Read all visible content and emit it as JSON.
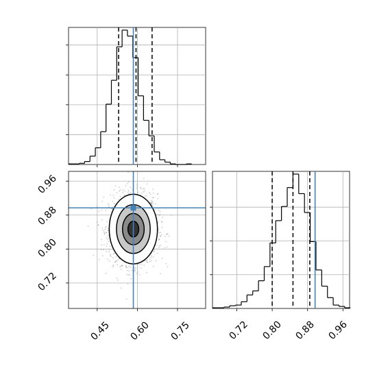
{
  "chart_data": {
    "type": "corner",
    "parameters": [
      "",
      ""
    ],
    "truth": {
      "x": 0.585,
      "y": 0.897,
      "color": "#4682b4"
    },
    "hist_x": {
      "type": "histogram",
      "bins": [
        0.343,
        0.363,
        0.383,
        0.403,
        0.423,
        0.443,
        0.463,
        0.483,
        0.503,
        0.523,
        0.543,
        0.563,
        0.583,
        0.603,
        0.623,
        0.643,
        0.663,
        0.683,
        0.703,
        0.723,
        0.743,
        0.763,
        0.783,
        0.803
      ],
      "counts": [
        1,
        1,
        2,
        5,
        14,
        28,
        55,
        101,
        141,
        197,
        225,
        215,
        179,
        115,
        74,
        48,
        21,
        8,
        4,
        1,
        0,
        0,
        1
      ],
      "quantiles": [
        0.53,
        0.595,
        0.655
      ],
      "xlim": [
        0.343,
        0.855
      ],
      "grid": true
    },
    "hist_y": {
      "type": "histogram",
      "bins": [
        0.665,
        0.678,
        0.691,
        0.704,
        0.717,
        0.73,
        0.743,
        0.756,
        0.769,
        0.782,
        0.795,
        0.808,
        0.821,
        0.834,
        0.847,
        0.86,
        0.873,
        0.886,
        0.899,
        0.912,
        0.925,
        0.938,
        0.951,
        0.964,
        0.977
      ],
      "counts": [
        1,
        1,
        2,
        4,
        5,
        10,
        20,
        26,
        41,
        62,
        97,
        130,
        151,
        179,
        199,
        170,
        142,
        99,
        57,
        33,
        16,
        5,
        3,
        1
      ],
      "quantiles": [
        0.8,
        0.847,
        0.885
      ],
      "xlim": [
        0.665,
        0.975
      ],
      "xticks": [
        "0.72",
        "0.80",
        "0.88",
        "0.96"
      ],
      "grid": true
    },
    "density": {
      "type": "scatter-contour",
      "xlim": [
        0.343,
        0.855
      ],
      "ylim": [
        0.66,
        0.983
      ],
      "xticks": [
        "0.45",
        "0.60",
        "0.75"
      ],
      "yticks": [
        "0.72",
        "0.80",
        "0.88",
        "0.96"
      ],
      "center": [
        0.585,
        0.847
      ],
      "sigma": [
        0.045,
        0.041
      ],
      "grid": true
    }
  }
}
